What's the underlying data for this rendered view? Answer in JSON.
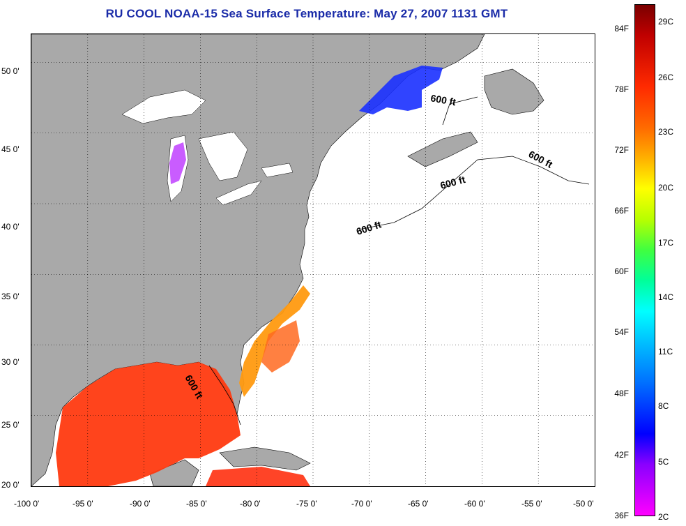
{
  "title": "RU COOL  NOAA-15  Sea Surface Temperature:  May 27, 2007 1131 GMT",
  "map": {
    "lon_range": [
      -100,
      -50
    ],
    "lat_range": [
      20,
      52
    ],
    "x_ticks": [
      "-100 0'",
      "-95 0'",
      "-90 0'",
      "-85 0'",
      "-80 0'",
      "-75 0'",
      "-70 0'",
      "-65 0'",
      "-60 0'",
      "-55 0'",
      "-50 0'"
    ],
    "y_ticks": [
      "50 0'",
      "45 0'",
      "40 0'",
      "35 0'",
      "30 0'",
      "25 0'",
      "20 0'"
    ],
    "contour_label": "600 ft",
    "colors": {
      "land": "#a9a9a9",
      "ocean_nodata": "#ffffff",
      "gulf_warm": "#ff3a10",
      "gulf_stream": "#ff9010",
      "cold_water": "#1030ff",
      "lake_cold": "#ff30e0"
    }
  },
  "colorbar": {
    "fahrenheit": [
      "84F",
      "78F",
      "72F",
      "66F",
      "60F",
      "54F",
      "48F",
      "42F",
      "36F"
    ],
    "celsius": [
      "29C",
      "26C",
      "23C",
      "20C",
      "17C",
      "14C",
      "11C",
      "8C",
      "5C",
      "2C"
    ]
  }
}
